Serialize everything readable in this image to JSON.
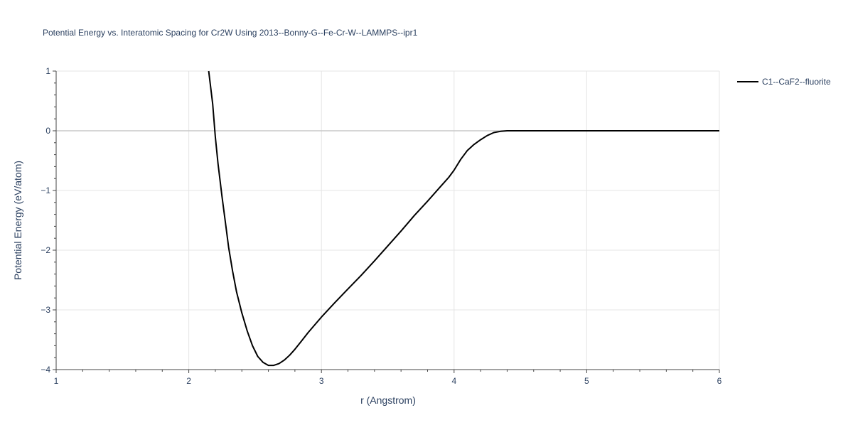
{
  "chart_data": {
    "type": "line",
    "title": "Potential Energy vs. Interatomic Spacing for Cr2W Using 2013--Bonny-G--Fe-Cr-W--LAMMPS--ipr1",
    "xlabel": "r (Angstrom)",
    "ylabel": "Potential Energy (eV/atom)",
    "xlim": [
      1,
      6
    ],
    "ylim": [
      -4,
      1
    ],
    "xticks": [
      1,
      2,
      3,
      4,
      5,
      6
    ],
    "yticks": [
      1,
      0,
      -1,
      -2,
      -3,
      -4
    ],
    "xtick_labels": [
      "1",
      "2",
      "3",
      "4",
      "5",
      "6"
    ],
    "ytick_labels": [
      "1",
      "0",
      "−1",
      "−2",
      "−3",
      "−4"
    ],
    "grid": true,
    "legend_position": "top-right",
    "series": [
      {
        "name": "C1--CaF2--fluorite",
        "color": "#000000",
        "x": [
          2.15,
          2.18,
          2.2,
          2.22,
          2.25,
          2.28,
          2.3,
          2.33,
          2.36,
          2.4,
          2.44,
          2.48,
          2.52,
          2.56,
          2.6,
          2.64,
          2.68,
          2.72,
          2.76,
          2.8,
          2.85,
          2.9,
          3.0,
          3.1,
          3.2,
          3.3,
          3.4,
          3.5,
          3.6,
          3.7,
          3.8,
          3.9,
          3.96,
          4.0,
          4.05,
          4.1,
          4.15,
          4.2,
          4.25,
          4.3,
          4.35,
          4.4,
          4.5,
          4.6,
          4.75,
          5.0,
          5.5,
          6.0
        ],
        "y": [
          1.0,
          0.45,
          -0.1,
          -0.55,
          -1.1,
          -1.6,
          -1.95,
          -2.35,
          -2.7,
          -3.05,
          -3.35,
          -3.6,
          -3.78,
          -3.88,
          -3.93,
          -3.93,
          -3.9,
          -3.84,
          -3.76,
          -3.66,
          -3.52,
          -3.38,
          -3.12,
          -2.88,
          -2.65,
          -2.42,
          -2.18,
          -1.93,
          -1.68,
          -1.42,
          -1.18,
          -0.93,
          -0.78,
          -0.66,
          -0.48,
          -0.33,
          -0.23,
          -0.15,
          -0.08,
          -0.03,
          -0.01,
          0.0,
          0.0,
          0.0,
          0.0,
          0.0,
          0.0,
          0.0
        ]
      }
    ]
  }
}
